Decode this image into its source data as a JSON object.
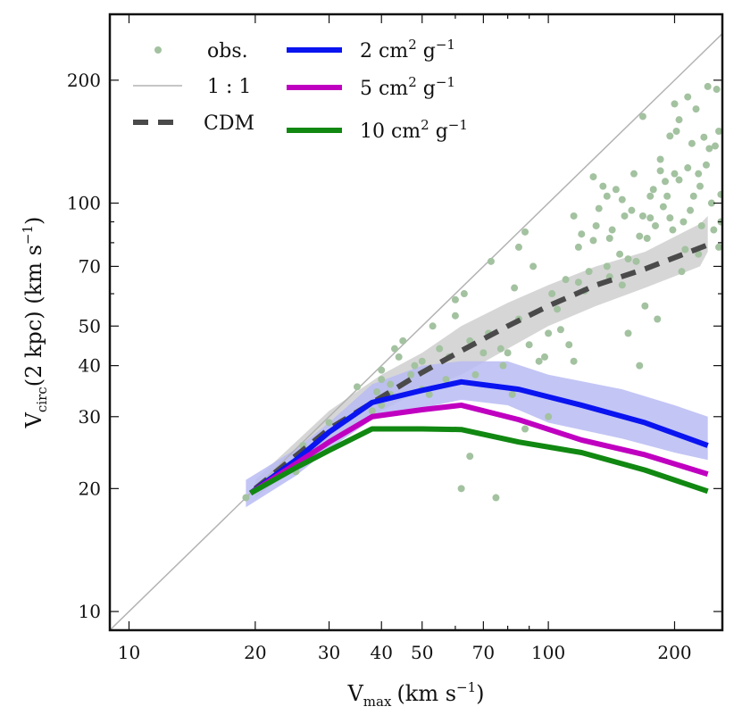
{
  "chart_data": {
    "type": "line",
    "scale": "log-log",
    "xlabel": {
      "main": "V",
      "sub": "max",
      "units": "(km s",
      "sup": "−1",
      "close": ")"
    },
    "ylabel": {
      "main": "V",
      "sub": "circ",
      "arg": "(2 kpc)",
      "units": " (km s",
      "sup": "−1",
      "close": ")"
    },
    "xlim": [
      9,
      260
    ],
    "ylim": [
      9,
      290
    ],
    "xticks": [
      10,
      20,
      30,
      40,
      50,
      70,
      100,
      200
    ],
    "yticks": [
      10,
      20,
      30,
      40,
      50,
      70,
      100,
      200
    ],
    "xtick_labels": [
      "10",
      "20",
      "30",
      "40",
      "50",
      "70",
      "100",
      "200"
    ],
    "ytick_labels": [
      "10",
      "20",
      "30",
      "40",
      "50",
      "70",
      "100",
      "200"
    ],
    "colors": {
      "obs": "#a3c2a0",
      "one_to_one": "#b3b3b3",
      "cdm": "#4a4a4a",
      "cdm_band": "#cfcfcf",
      "sidm2": "#0a14f0",
      "sidm2_band": "#b8bbf3",
      "sidm5": "#c000c0",
      "sidm10": "#118811"
    },
    "legend": [
      {
        "key": "obs",
        "label": "obs.",
        "kind": "marker"
      },
      {
        "key": "one_to_one",
        "label": "1 : 1",
        "kind": "thin"
      },
      {
        "key": "cdm",
        "label": "CDM",
        "kind": "dashed"
      },
      {
        "key": "sidm2",
        "label": "2 cm",
        "sup": "2",
        "unit": " g",
        "unitsup": "−1",
        "kind": "thick"
      },
      {
        "key": "sidm5",
        "label": "5 cm",
        "sup": "2",
        "unit": " g",
        "unitsup": "−1",
        "kind": "thick"
      },
      {
        "key": "sidm10",
        "label": "10 cm",
        "sup": "2",
        "unit": " g",
        "unitsup": "−1",
        "kind": "thick"
      }
    ],
    "series": [
      {
        "name": "CDM",
        "key": "cdm",
        "style": "dashed",
        "x": [
          20,
          30,
          40,
          50,
          62,
          80,
          100,
          130,
          170,
          240
        ],
        "y": [
          20,
          28,
          33.5,
          38.5,
          43.5,
          50,
          56,
          63,
          69,
          79
        ]
      },
      {
        "name": "2 cm2 g-1",
        "key": "sidm2",
        "style": "solid",
        "x": [
          19.5,
          25,
          30,
          38,
          50,
          62,
          85,
          120,
          170,
          240
        ],
        "y": [
          19.5,
          23.5,
          27.5,
          32.5,
          34.8,
          36.5,
          35,
          32,
          29,
          25.5
        ]
      },
      {
        "name": "5 cm2 g-1",
        "key": "sidm5",
        "style": "solid",
        "x": [
          19.5,
          25,
          30,
          38,
          50,
          62,
          85,
          120,
          170,
          240
        ],
        "y": [
          19.5,
          23,
          26,
          30,
          31.2,
          32,
          29.5,
          26.3,
          24.2,
          21.7
        ]
      },
      {
        "name": "10 cm2 g-1",
        "key": "sidm10",
        "style": "solid",
        "x": [
          19.5,
          25,
          30,
          38,
          50,
          62,
          85,
          120,
          170,
          240
        ],
        "y": [
          19.5,
          22.5,
          24.8,
          28,
          28,
          27.9,
          26,
          24.5,
          22.2,
          19.7
        ]
      }
    ],
    "bands": [
      {
        "key": "cdm_band",
        "x": [
          20,
          30,
          40,
          50,
          62,
          80,
          100,
          130,
          170,
          230,
          240
        ],
        "upper": [
          21,
          31,
          38,
          43,
          50,
          57,
          63,
          70,
          76,
          89,
          93
        ],
        "lower": [
          19,
          26,
          31,
          35,
          38,
          44,
          50,
          56,
          62,
          70,
          76
        ]
      },
      {
        "key": "sidm2_band",
        "x": [
          19,
          25,
          30,
          38,
          50,
          62,
          80,
          100,
          150,
          200,
          240
        ],
        "upper": [
          21,
          25,
          29,
          36,
          40,
          41,
          41,
          38,
          35,
          32,
          30
        ],
        "lower": [
          18,
          21.5,
          25,
          29.5,
          31.5,
          33,
          32,
          29,
          26.5,
          24.5,
          23.5
        ]
      }
    ],
    "observations": [
      [
        19,
        19
      ],
      [
        21,
        20.5
      ],
      [
        26,
        25.5
      ],
      [
        25,
        22
      ],
      [
        30,
        29
      ],
      [
        33,
        29.5
      ],
      [
        35,
        35.5
      ],
      [
        38,
        31
      ],
      [
        39,
        34.5
      ],
      [
        40,
        37
      ],
      [
        40,
        39
      ],
      [
        40,
        32
      ],
      [
        42,
        36
      ],
      [
        42,
        34
      ],
      [
        43,
        44
      ],
      [
        44,
        42
      ],
      [
        45,
        46
      ],
      [
        47,
        38
      ],
      [
        48,
        40
      ],
      [
        50,
        41
      ],
      [
        50,
        35
      ],
      [
        52,
        34
      ],
      [
        53,
        50
      ],
      [
        55,
        44
      ],
      [
        57,
        37
      ],
      [
        58,
        42
      ],
      [
        60,
        58
      ],
      [
        60,
        53
      ],
      [
        62,
        20
      ],
      [
        63,
        60
      ],
      [
        65,
        24
      ],
      [
        65,
        46
      ],
      [
        67,
        38
      ],
      [
        70,
        43
      ],
      [
        72,
        48
      ],
      [
        73,
        72
      ],
      [
        75,
        19
      ],
      [
        77,
        44
      ],
      [
        78,
        40
      ],
      [
        80,
        43
      ],
      [
        82,
        34
      ],
      [
        83,
        62
      ],
      [
        85,
        78
      ],
      [
        85,
        52
      ],
      [
        88,
        85
      ],
      [
        88,
        28
      ],
      [
        90,
        45
      ],
      [
        92,
        70
      ],
      [
        95,
        41
      ],
      [
        98,
        42
      ],
      [
        100,
        48
      ],
      [
        100,
        30
      ],
      [
        102,
        60
      ],
      [
        105,
        55
      ],
      [
        107,
        49
      ],
      [
        110,
        65
      ],
      [
        112,
        45
      ],
      [
        115,
        93
      ],
      [
        115,
        41
      ],
      [
        118,
        78
      ],
      [
        120,
        84
      ],
      [
        122,
        61
      ],
      [
        125,
        68
      ],
      [
        128,
        116
      ],
      [
        130,
        88
      ],
      [
        132,
        97
      ],
      [
        135,
        110
      ],
      [
        138,
        70
      ],
      [
        140,
        66
      ],
      [
        140,
        82
      ],
      [
        142,
        86
      ],
      [
        145,
        108
      ],
      [
        148,
        75
      ],
      [
        150,
        63
      ],
      [
        152,
        93
      ],
      [
        155,
        48
      ],
      [
        155,
        73
      ],
      [
        158,
        96
      ],
      [
        160,
        118
      ],
      [
        162,
        72
      ],
      [
        165,
        40
      ],
      [
        168,
        163
      ],
      [
        168,
        93
      ],
      [
        170,
        56
      ],
      [
        172,
        82
      ],
      [
        175,
        92
      ],
      [
        178,
        108
      ],
      [
        180,
        88
      ],
      [
        182,
        52
      ],
      [
        185,
        120
      ],
      [
        188,
        98
      ],
      [
        190,
        113
      ],
      [
        192,
        104
      ],
      [
        195,
        92
      ],
      [
        198,
        86
      ],
      [
        200,
        175
      ],
      [
        200,
        118
      ],
      [
        202,
        150
      ],
      [
        205,
        114
      ],
      [
        208,
        68
      ],
      [
        210,
        90
      ],
      [
        212,
        77
      ],
      [
        215,
        182
      ],
      [
        215,
        122
      ],
      [
        218,
        96
      ],
      [
        220,
        140
      ],
      [
        222,
        104
      ],
      [
        225,
        170
      ],
      [
        228,
        75
      ],
      [
        230,
        110
      ],
      [
        232,
        88
      ],
      [
        235,
        145
      ],
      [
        238,
        124
      ],
      [
        240,
        193
      ],
      [
        242,
        136
      ],
      [
        245,
        100
      ],
      [
        248,
        86
      ],
      [
        250,
        138
      ],
      [
        252,
        190
      ],
      [
        255,
        150
      ],
      [
        255,
        78
      ],
      [
        258,
        105
      ],
      [
        258,
        90
      ],
      [
        185,
        128
      ],
      [
        195,
        146
      ],
      [
        165,
        83
      ],
      [
        150,
        102
      ],
      [
        138,
        104
      ],
      [
        128,
        81
      ],
      [
        118,
        64
      ],
      [
        205,
        160
      ],
      [
        175,
        104
      ],
      [
        228,
        118
      ]
    ]
  }
}
